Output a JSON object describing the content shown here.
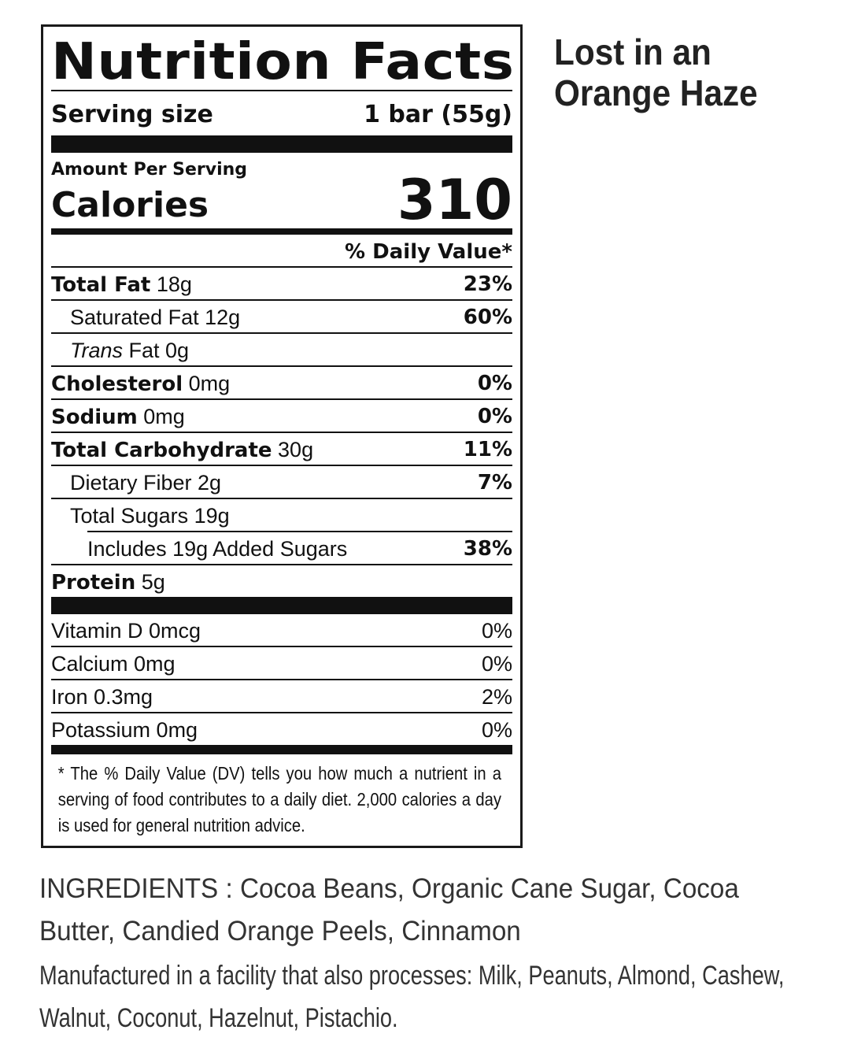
{
  "label": {
    "title": "Nutrition Facts",
    "serving_size_label": "Serving size",
    "serving_size_value": "1 bar (55g)",
    "amount_per_serving": "Amount Per Serving",
    "calories_label": "Calories",
    "calories_value": "310",
    "daily_value_header": "% Daily Value*",
    "nutrients": [
      {
        "name": "Total Fat",
        "amount": "18g",
        "dv": "23%",
        "bold": true,
        "indent": 0
      },
      {
        "name": "Saturated Fat 12g",
        "amount": "",
        "dv": "60%",
        "bold": false,
        "indent": 1
      },
      {
        "name": "Trans",
        "italic": true,
        "amount": "Fat 0g",
        "dv": "",
        "bold": false,
        "indent": 1
      },
      {
        "name": "Cholesterol",
        "amount": "0mg",
        "dv": "0%",
        "bold": true,
        "indent": 0
      },
      {
        "name": "Sodium",
        "amount": "0mg",
        "dv": "0%",
        "bold": true,
        "indent": 0
      },
      {
        "name": "Total Carbohydrate",
        "amount": "30g",
        "dv": "11%",
        "bold": true,
        "indent": 0
      },
      {
        "name": "Dietary Fiber 2g",
        "amount": "",
        "dv": "7%",
        "bold": false,
        "indent": 1
      },
      {
        "name": "Total Sugars 19g",
        "amount": "",
        "dv": "",
        "bold": false,
        "indent": 1
      },
      {
        "name": "Includes 19g Added Sugars",
        "amount": "",
        "dv": "38%",
        "bold": false,
        "indent": 2
      },
      {
        "name": "Protein",
        "amount": "5g",
        "dv": "",
        "bold": true,
        "indent": 0
      }
    ],
    "vitamins": [
      {
        "name": "Vitamin D 0mcg",
        "dv": "0%"
      },
      {
        "name": "Calcium 0mg",
        "dv": "0%"
      },
      {
        "name": "Iron 0.3mg",
        "dv": "2%"
      },
      {
        "name": "Potassium 0mg",
        "dv": "0%"
      }
    ],
    "footnote": "* The % Daily Value (DV) tells you how much a nutrient in a serving of food contributes to a daily diet. 2,000 calories a day is used for general nutrition advice."
  },
  "product_name": "Lost in an Orange Haze",
  "ingredients": "INGREDIENTS : Cocoa Beans, Organic Cane Sugar, Cocoa Butter, Candied Orange Peels, Cinnamon",
  "allergen_statement": "Manufactured in a facility that also processes: Milk, Peanuts, Almond, Cashew, Walnut, Coconut, Hazelnut, Pistachio."
}
